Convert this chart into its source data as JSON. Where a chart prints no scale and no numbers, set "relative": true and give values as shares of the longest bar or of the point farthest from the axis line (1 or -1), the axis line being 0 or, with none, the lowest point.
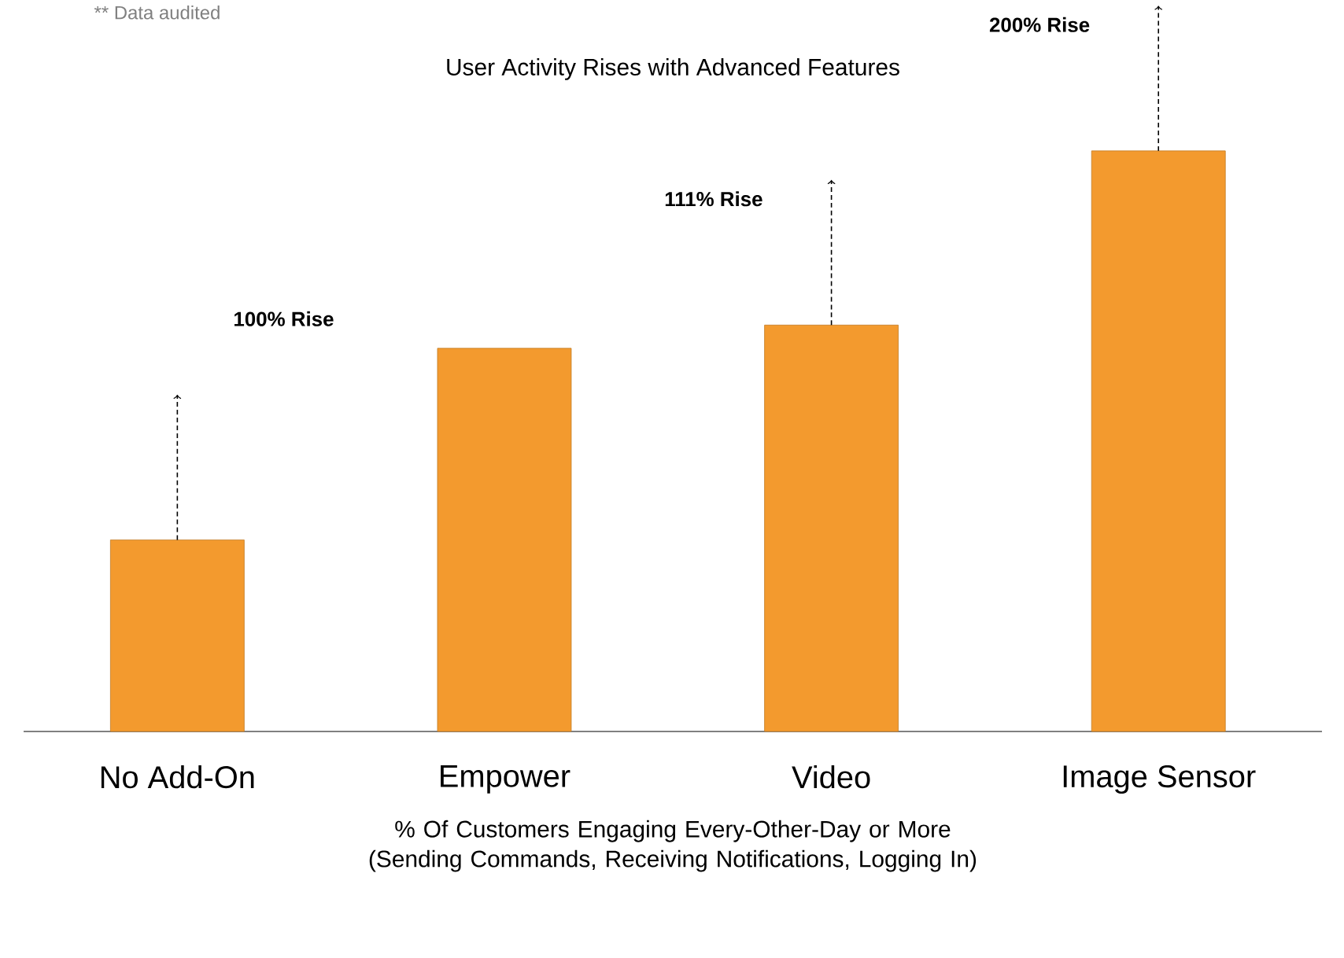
{
  "chart_data": {
    "type": "bar",
    "title": "User Activity Rises with Advanced Features",
    "xlabel": "% Of Customers Engaging Every-Other-Day or More (Sending Commands, Receiving Notifications, Logging In)",
    "categories": [
      "No Add-On",
      "Empower",
      "Video",
      "Image Sensor"
    ],
    "values": [
      0.33,
      0.66,
      0.7,
      1
    ],
    "relative": true,
    "color": "#f39a2e",
    "annotations": [
      "** Data audited",
      "100% Rise",
      "111% Rise",
      "200% Rise"
    ]
  }
}
